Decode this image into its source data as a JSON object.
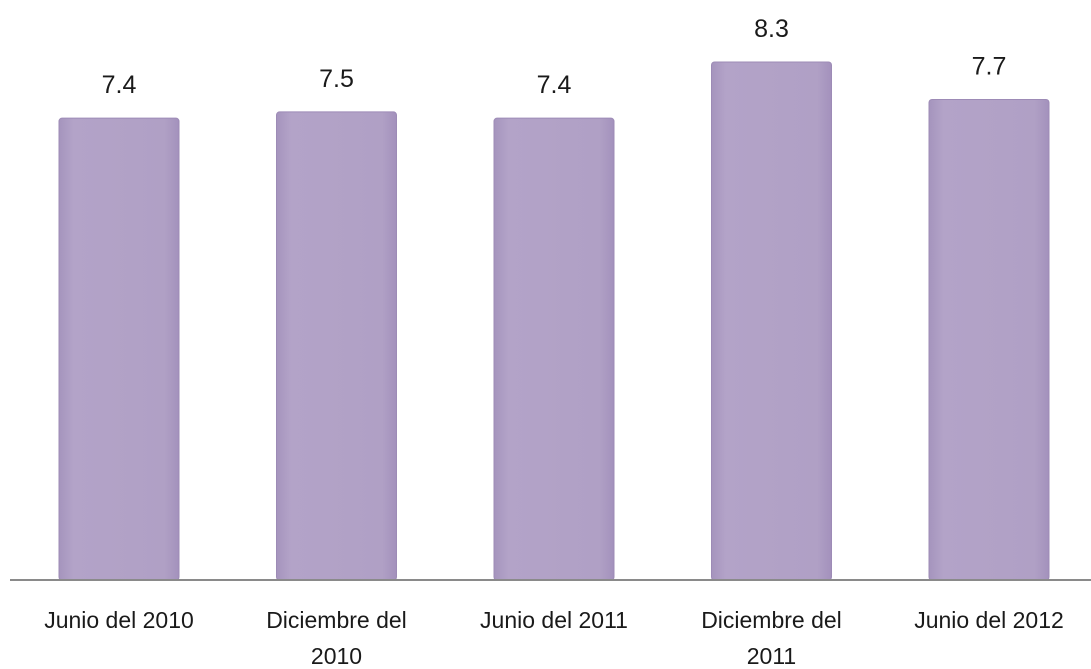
{
  "chart_data": {
    "type": "bar",
    "title": "",
    "xlabel": "",
    "ylabel": "",
    "categories": [
      [
        "Junio del 2010"
      ],
      [
        "Diciembre del",
        "2010"
      ],
      [
        "Junio del 2011"
      ],
      [
        "Diciembre del",
        "2011"
      ],
      [
        "Junio del 2012"
      ]
    ],
    "values": [
      7.4,
      7.5,
      7.4,
      8.3,
      7.7
    ],
    "value_labels": [
      "7.4",
      "7.5",
      "7.4",
      "8.3",
      "7.7"
    ],
    "ylim": [
      0,
      8.3
    ],
    "grid": false,
    "legend": "none",
    "colors": {
      "bar": "#b0a0c6",
      "bar_edge": "#9d8bb6",
      "axis": "#8a8a8a",
      "text": "#1a1a1a"
    }
  }
}
